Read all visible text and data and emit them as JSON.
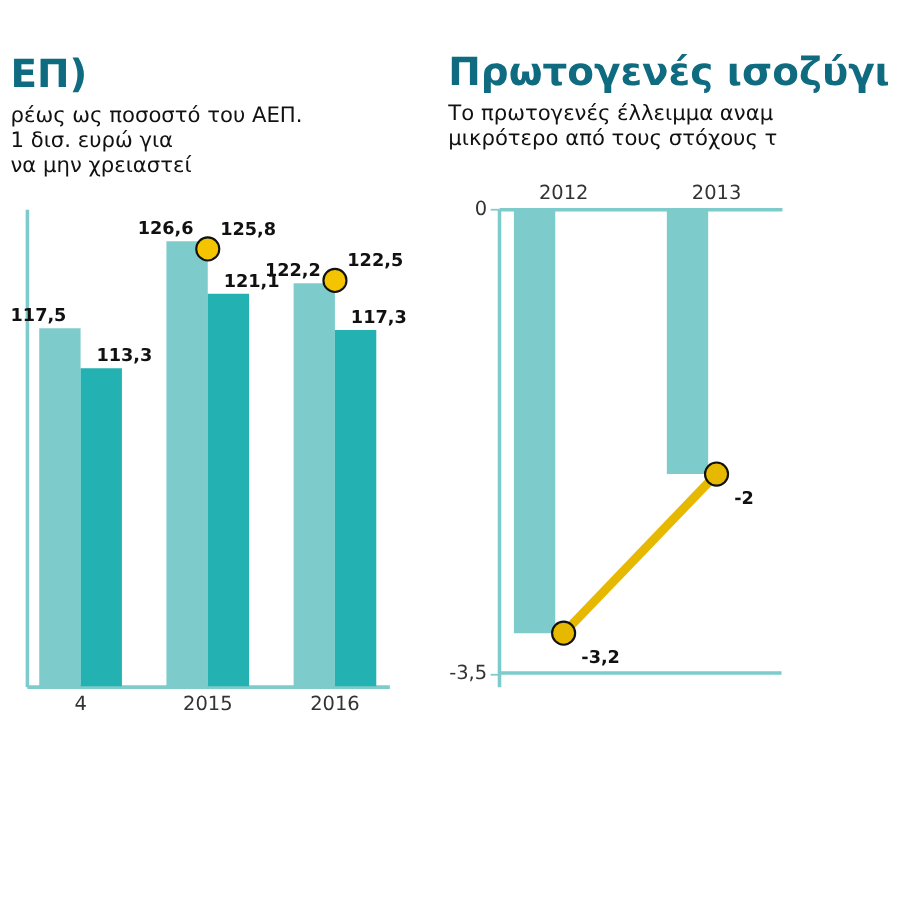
{
  "chart_data": [
    {
      "type": "bar",
      "title": "ΕΠ)",
      "subtitle": [
        "ρέως ως ποσοστό του ΑΕΠ.",
        "1 δισ. ευρώ για",
        "να μην χρειαστεί"
      ],
      "categories": [
        "4",
        "2015",
        "2016"
      ],
      "ylim": [
        80,
        130
      ],
      "tick_labels": "x",
      "series": [
        {
          "color": "#7ecbcb",
          "values": [
            117.5,
            126.6,
            122.2
          ],
          "value_labels": [
            "117,5",
            "126,6",
            "122,2"
          ]
        },
        {
          "color": "#24b1b1",
          "values": [
            113.3,
            121.1,
            117.3
          ],
          "value_labels": [
            "113,3",
            "121,1",
            "117,3"
          ]
        },
        {
          "type": "scatter",
          "marker": "circle",
          "color": "#f5c400",
          "values": [
            null,
            125.8,
            122.5
          ],
          "value_labels": [
            null,
            "125,8",
            "122,5"
          ]
        }
      ]
    },
    {
      "type": "bar",
      "title": "Πρωτογενές ισοζύγι",
      "subtitle": [
        "Το πρωτογενές έλλειμμα αναμ",
        "μικρότερο από τους στόχους τ"
      ],
      "categories": [
        "2012",
        "2013"
      ],
      "ylim": [
        -3.6,
        0
      ],
      "yticks": [
        0,
        {
          "value": -3.5,
          "label": "-3,5"
        }
      ],
      "ref_lines": [
        {
          "axis": "y",
          "value": -3.5,
          "color": "#7ecbcb"
        }
      ],
      "series": [
        {
          "color": "#7ecbcb",
          "values": [
            -3.2,
            -2.0
          ]
        },
        {
          "type": "line",
          "marker": "circle",
          "color": "#e6b800",
          "values": [
            -3.2,
            -2.0
          ],
          "value_labels": [
            "-3,2",
            "-2"
          ]
        }
      ]
    }
  ]
}
